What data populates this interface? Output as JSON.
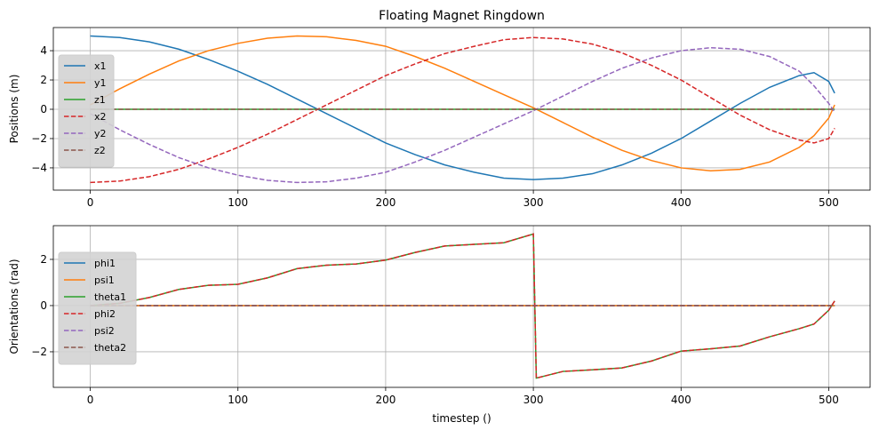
{
  "chart_data": [
    {
      "type": "line",
      "title": "Floating Magnet Ringdown",
      "ylabel": "Positions (m)",
      "grid": true,
      "legend": "left",
      "x": [
        0,
        20,
        40,
        60,
        80,
        100,
        120,
        140,
        160,
        180,
        200,
        220,
        240,
        260,
        280,
        300,
        320,
        340,
        360,
        380,
        400,
        420,
        440,
        460,
        480,
        490,
        500,
        504
      ],
      "xlim": [
        -25,
        528
      ],
      "xticks": [
        0,
        100,
        200,
        300,
        400,
        500
      ],
      "ylim": [
        -5.52,
        5.58
      ],
      "yticks": [
        {
          "value": -4,
          "label": "−4"
        },
        {
          "value": -2,
          "label": "−2"
        },
        0,
        2,
        4
      ],
      "series": [
        {
          "name": "x1",
          "color": "#1f77b4",
          "dashed": false,
          "values": [
            5.0,
            4.9,
            4.6,
            4.1,
            3.4,
            2.6,
            1.7,
            0.7,
            -0.3,
            -1.3,
            -2.3,
            -3.1,
            -3.8,
            -4.3,
            -4.7,
            -4.8,
            -4.7,
            -4.4,
            -3.8,
            -3.0,
            -2.0,
            -0.8,
            0.4,
            1.5,
            2.3,
            2.5,
            1.9,
            1.1
          ]
        },
        {
          "name": "y1",
          "color": "#ff7f0e",
          "dashed": false,
          "values": [
            0.3,
            1.4,
            2.4,
            3.3,
            4.0,
            4.5,
            4.85,
            5.0,
            4.95,
            4.7,
            4.3,
            3.6,
            2.8,
            1.9,
            1.0,
            0.1,
            -0.9,
            -1.9,
            -2.8,
            -3.5,
            -4.0,
            -4.2,
            -4.1,
            -3.6,
            -2.6,
            -1.8,
            -0.6,
            0.3
          ]
        },
        {
          "name": "z1",
          "color": "#2ca02c",
          "dashed": false,
          "values": [
            0,
            0,
            0,
            0,
            0,
            0,
            0,
            0,
            0,
            0,
            0,
            0,
            0,
            0,
            0,
            0,
            0,
            0,
            0,
            0,
            0,
            0,
            0,
            0,
            0,
            0,
            0,
            0
          ]
        },
        {
          "name": "x2",
          "color": "#d62728",
          "dashed": true,
          "values": [
            -5.0,
            -4.9,
            -4.6,
            -4.1,
            -3.4,
            -2.6,
            -1.7,
            -0.7,
            0.3,
            1.3,
            2.3,
            3.1,
            3.8,
            4.3,
            4.75,
            4.9,
            4.8,
            4.45,
            3.85,
            3.0,
            2.0,
            0.8,
            -0.4,
            -1.4,
            -2.1,
            -2.3,
            -2.0,
            -1.3
          ]
        },
        {
          "name": "y2",
          "color": "#9467bd",
          "dashed": true,
          "values": [
            -0.3,
            -1.4,
            -2.4,
            -3.3,
            -4.0,
            -4.5,
            -4.85,
            -5.0,
            -4.95,
            -4.7,
            -4.3,
            -3.6,
            -2.8,
            -1.9,
            -1.0,
            -0.1,
            0.9,
            1.9,
            2.8,
            3.5,
            4.0,
            4.2,
            4.1,
            3.6,
            2.6,
            1.6,
            0.4,
            -0.2
          ]
        },
        {
          "name": "z2",
          "color": "#8c564b",
          "dashed": true,
          "values": [
            0,
            0,
            0,
            0,
            0,
            0,
            0,
            0,
            0,
            0,
            0,
            0,
            0,
            0,
            0,
            0,
            0,
            0,
            0,
            0,
            0,
            0,
            0,
            0,
            0,
            0,
            0,
            0
          ]
        }
      ]
    },
    {
      "type": "line",
      "xlabel": "timestep ()",
      "ylabel": "Orientations (rad)",
      "grid": true,
      "legend": "left",
      "x": [
        0,
        20,
        40,
        60,
        80,
        100,
        120,
        140,
        160,
        180,
        200,
        220,
        240,
        260,
        280,
        300,
        302,
        320,
        340,
        360,
        380,
        400,
        420,
        440,
        460,
        480,
        490,
        500,
        504
      ],
      "xlim": [
        -25,
        528
      ],
      "xticks": [
        0,
        100,
        200,
        300,
        400,
        500
      ],
      "ylim": [
        -3.54,
        3.46
      ],
      "yticks": [
        {
          "value": -2,
          "label": "−2"
        },
        0,
        2
      ],
      "series": [
        {
          "name": "phi1",
          "color": "#1f77b4",
          "dashed": false,
          "values": [
            0,
            0,
            0,
            0,
            0,
            0,
            0,
            0,
            0,
            0,
            0,
            0,
            0,
            0,
            0,
            0,
            0,
            0,
            0,
            0,
            0,
            0,
            0,
            0,
            0,
            0,
            0,
            0,
            0
          ]
        },
        {
          "name": "psi1",
          "color": "#ff7f0e",
          "dashed": false,
          "values": [
            0,
            0,
            0,
            0,
            0,
            0,
            0,
            0,
            0,
            0,
            0,
            0,
            0,
            0,
            0,
            0,
            0,
            0,
            0,
            0,
            0,
            0,
            0,
            0,
            0,
            0,
            0,
            0,
            0
          ]
        },
        {
          "name": "theta1",
          "color": "#2ca02c",
          "dashed": false,
          "values": [
            0,
            0.1,
            0.35,
            0.7,
            0.88,
            0.92,
            1.2,
            1.6,
            1.75,
            1.8,
            1.97,
            2.3,
            2.58,
            2.65,
            2.72,
            3.1,
            -3.14,
            -2.85,
            -2.78,
            -2.7,
            -2.4,
            -1.97,
            -1.87,
            -1.75,
            -1.35,
            -1.0,
            -0.8,
            -0.2,
            0.2
          ]
        },
        {
          "name": "phi2",
          "color": "#d62728",
          "dashed": true,
          "values": [
            0,
            0.1,
            0.35,
            0.7,
            0.88,
            0.92,
            1.2,
            1.6,
            1.75,
            1.8,
            1.97,
            2.3,
            2.58,
            2.65,
            2.72,
            3.1,
            -3.14,
            -2.85,
            -2.78,
            -2.7,
            -2.4,
            -1.97,
            -1.87,
            -1.75,
            -1.35,
            -1.0,
            -0.8,
            -0.2,
            0.2
          ]
        },
        {
          "name": "psi2",
          "color": "#9467bd",
          "dashed": true,
          "values": [
            0,
            0,
            0,
            0,
            0,
            0,
            0,
            0,
            0,
            0,
            0,
            0,
            0,
            0,
            0,
            0,
            0,
            0,
            0,
            0,
            0,
            0,
            0,
            0,
            0,
            0,
            0,
            0,
            0
          ]
        },
        {
          "name": "theta2",
          "color": "#8c564b",
          "dashed": true,
          "values": [
            0,
            0,
            0,
            0,
            0,
            0,
            0,
            0,
            0,
            0,
            0,
            0,
            0,
            0,
            0,
            0,
            0,
            0,
            0,
            0,
            0,
            0,
            0,
            0,
            0,
            0,
            0,
            0,
            0
          ]
        }
      ]
    }
  ]
}
